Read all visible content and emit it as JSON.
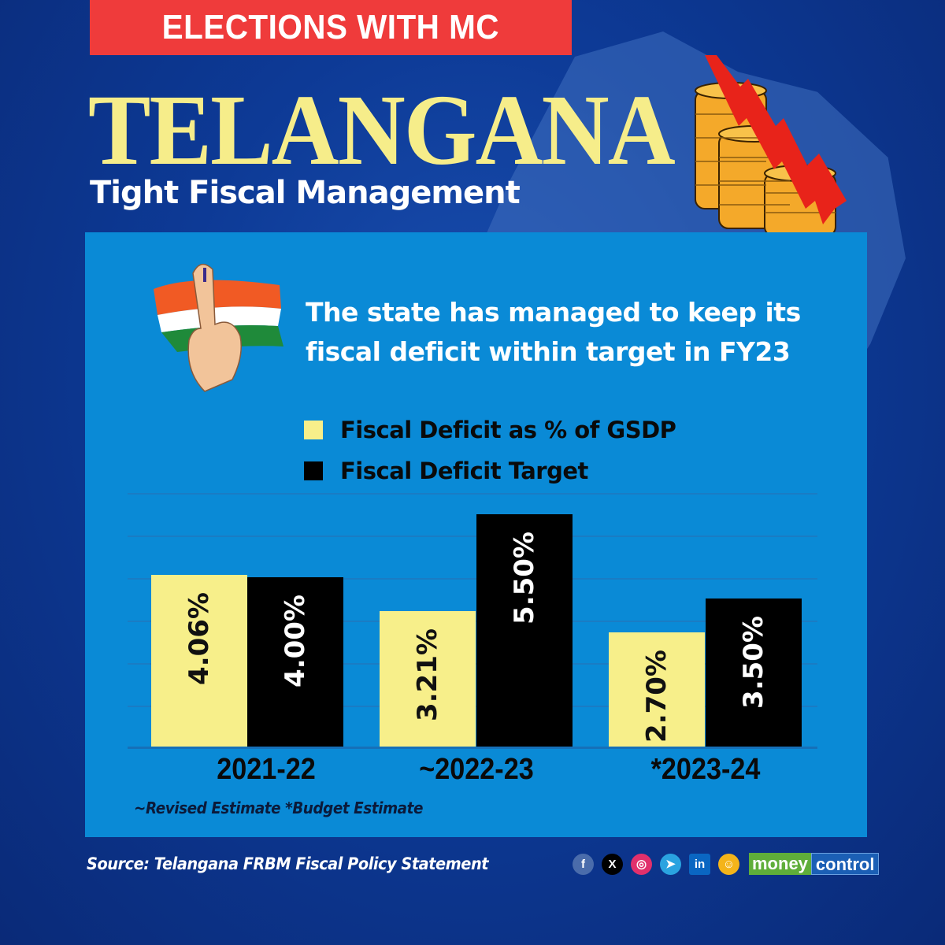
{
  "banner": {
    "label": "ELECTIONS WITH MC",
    "color": "#ef3b3b"
  },
  "header": {
    "title": "TELANGANA",
    "subtitle": "Tight Fiscal Management",
    "title_color": "#f6ed8a"
  },
  "illustrations": {
    "voter_icon": "inked-finger-flag-icon",
    "coins_icon": "falling-coins-arrow-icon"
  },
  "headline": "The state has managed to keep its fiscal deficit within target in FY23",
  "legend": [
    {
      "label": "Fiscal Deficit as % of GSDP",
      "color": "#f7ef8a"
    },
    {
      "label": "Fiscal Deficit Target",
      "color": "#000000"
    }
  ],
  "chart_data": {
    "type": "bar",
    "title": "The state has managed to keep its fiscal deficit within target in FY23",
    "categories": [
      "2021-22",
      "~2022-23",
      "*2023-24"
    ],
    "series": [
      {
        "name": "Fiscal Deficit as % of GSDP",
        "values": [
          4.06,
          3.21,
          2.7
        ],
        "labels": [
          "4.06%",
          "3.21%",
          "2.70%"
        ],
        "color": "#f7ef8a"
      },
      {
        "name": "Fiscal Deficit Target",
        "values": [
          4.0,
          5.5,
          3.5
        ],
        "labels": [
          "4.00%",
          "5.50%",
          "3.50%"
        ],
        "color": "#000000"
      }
    ],
    "xlabel": "",
    "ylabel": "",
    "ylim": [
      0,
      6
    ],
    "grid": true,
    "y_axis_visible": false,
    "legend_position": "top-left",
    "annotations": [
      "~Revised Estimate *Budget Estimate"
    ]
  },
  "footnote": "~Revised Estimate *Budget Estimate",
  "source": "Source: Telangana FRBM Fiscal Policy Statement",
  "footer": {
    "social": [
      {
        "name": "facebook",
        "glyph": "f",
        "color": "#4a6cab"
      },
      {
        "name": "x",
        "glyph": "X",
        "color": "#000000"
      },
      {
        "name": "instagram",
        "glyph": "◎",
        "color": "#e1306c"
      },
      {
        "name": "telegram",
        "glyph": "➤",
        "color": "#2aa3e0"
      },
      {
        "name": "linkedin",
        "glyph": "in",
        "color": "#0a66c2"
      },
      {
        "name": "koo",
        "glyph": "☺",
        "color": "#f4b41a"
      }
    ],
    "brand_money": "money",
    "brand_control": "control"
  }
}
